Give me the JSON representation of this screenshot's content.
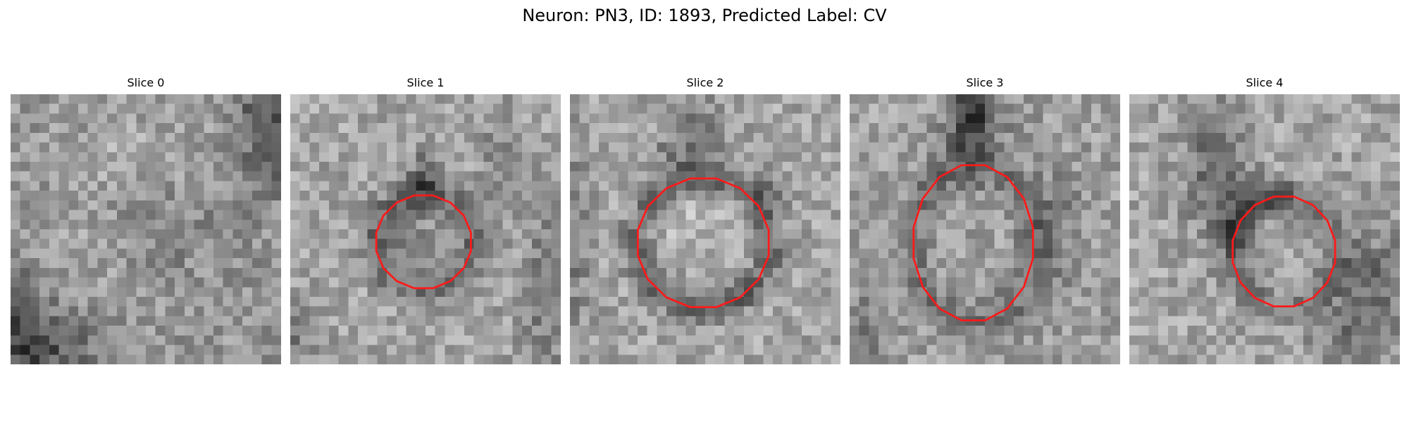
{
  "figure": {
    "title": "Neuron: PN3, ID: 1893, Predicted Label: CV"
  },
  "contour_color": "#ff1a1a",
  "panels": [
    {
      "title": "Slice 0"
    },
    {
      "title": "Slice 1"
    },
    {
      "title": "Slice 2"
    },
    {
      "title": "Slice 3"
    },
    {
      "title": "Slice 4"
    }
  ]
}
